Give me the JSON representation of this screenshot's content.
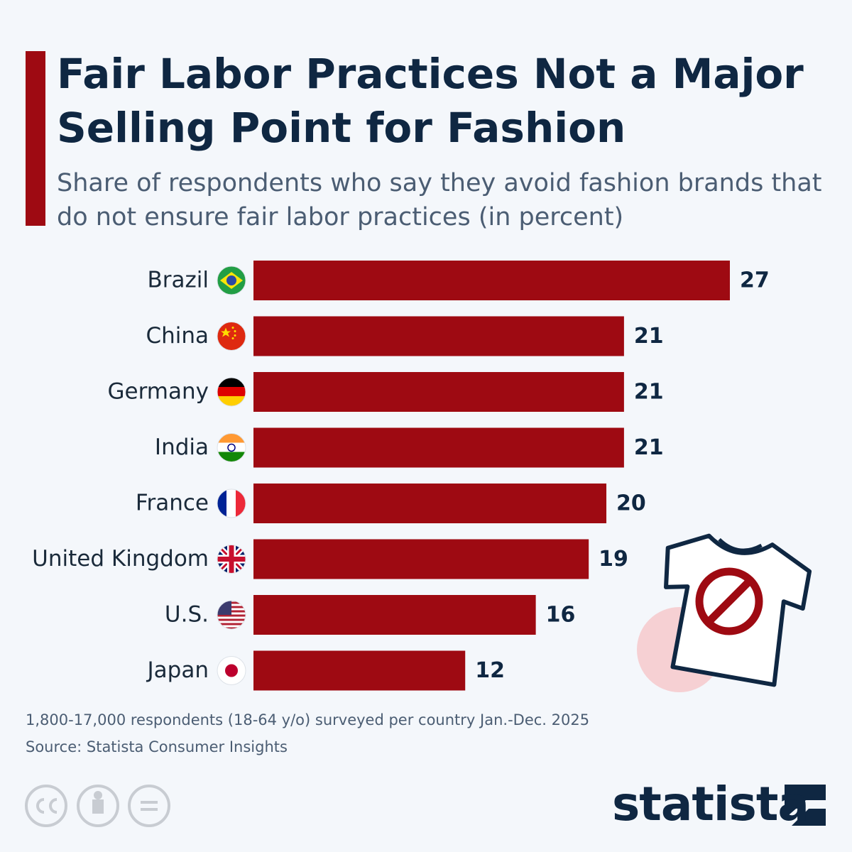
{
  "chart_data": {
    "type": "bar",
    "orientation": "horizontal",
    "title": "Fair Labor Practices Not a Major Selling Point for Fashion",
    "subtitle": "Share of respondents who say they avoid fashion brands that do not ensure fair labor practices (in percent)",
    "categories": [
      "Brazil",
      "China",
      "Germany",
      "India",
      "France",
      "United Kingdom",
      "U.S.",
      "Japan"
    ],
    "values": [
      27,
      21,
      21,
      21,
      20,
      19,
      16,
      12
    ],
    "color": "#9e0a12",
    "note": "1,800-17,000 respondents (18-64 y/o) surveyed per country Jan.-Dec. 2025",
    "source": "Source: Statista Consumer Insights",
    "brand": "statista"
  }
}
